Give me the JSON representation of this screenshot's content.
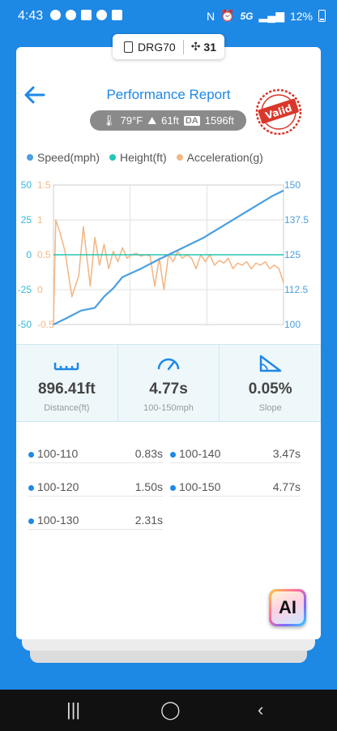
{
  "status_bar": {
    "time": "4:43",
    "network": "5G",
    "battery": "12%"
  },
  "device_pill": {
    "device": "DRG70",
    "satellites": "31"
  },
  "header": {
    "title": "Performance Report",
    "stamp_text": "Valid"
  },
  "conditions": {
    "temperature": "79°F",
    "elevation": "61ft",
    "da_label": "DA",
    "density_altitude": "1596ft"
  },
  "chart_data": {
    "type": "line",
    "legend": [
      "Speed(mph)",
      "Height(ft)",
      "Acceleration(g)"
    ],
    "colors": {
      "speed": "#4a9fe0",
      "height": "#26c6b4",
      "acceleration": "#f3b887",
      "height_axis": "#36b8d8"
    },
    "left_axis_height": {
      "ticks": [
        "50",
        "25",
        "0",
        "-25",
        "-50"
      ],
      "range": [
        -50,
        50
      ]
    },
    "left_axis_accel": {
      "ticks": [
        "1.5",
        "1",
        "0.5",
        "0",
        "-0.5"
      ],
      "range": [
        -0.5,
        1.5
      ]
    },
    "right_axis_speed": {
      "ticks": [
        "150",
        "137.5",
        "125",
        "112.5",
        "100"
      ],
      "range": [
        100,
        150
      ]
    },
    "series": [
      {
        "name": "Speed(mph)",
        "axis": "speed",
        "x": [
          0,
          0.05,
          0.12,
          0.18,
          0.22,
          0.26,
          0.3,
          0.38,
          0.45,
          0.55,
          0.65,
          0.75,
          0.85,
          0.95,
          1.0
        ],
        "y": [
          100,
          102,
          105,
          106,
          110,
          113,
          117,
          120,
          123,
          127,
          131,
          136,
          141,
          146,
          148
        ]
      },
      {
        "name": "Height(ft)",
        "axis": "height",
        "x": [
          0,
          1.0
        ],
        "y": [
          0,
          0
        ]
      },
      {
        "name": "Acceleration(g)",
        "axis": "accel",
        "x": [
          0,
          0.01,
          0.03,
          0.05,
          0.08,
          0.11,
          0.13,
          0.16,
          0.18,
          0.2,
          0.22,
          0.24,
          0.26,
          0.28,
          0.3,
          0.32,
          0.34,
          0.36,
          0.38,
          0.4,
          0.42,
          0.44,
          0.46,
          0.48,
          0.5,
          0.52,
          0.54,
          0.56,
          0.58,
          0.6,
          0.62,
          0.64,
          0.66,
          0.68,
          0.7,
          0.72,
          0.74,
          0.76,
          0.78,
          0.8,
          0.82,
          0.84,
          0.86,
          0.88,
          0.9,
          0.92,
          0.94,
          0.96,
          0.98,
          1.0
        ],
        "y": [
          -0.5,
          1.0,
          0.8,
          0.55,
          -0.1,
          0.2,
          0.9,
          0.05,
          0.75,
          0.35,
          0.65,
          0.3,
          0.55,
          0.4,
          0.6,
          0.45,
          0.5,
          0.52,
          0.48,
          0.5,
          0.48,
          0.05,
          0.45,
          0.0,
          0.5,
          0.4,
          0.55,
          0.45,
          0.5,
          0.45,
          0.3,
          0.5,
          0.4,
          0.5,
          0.35,
          0.42,
          0.38,
          0.45,
          0.3,
          0.38,
          0.35,
          0.4,
          0.3,
          0.38,
          0.35,
          0.4,
          0.3,
          0.35,
          0.3,
          0.1
        ]
      }
    ]
  },
  "stats": [
    {
      "icon": "ruler-icon",
      "value": "896.41ft",
      "label": "Distance(ft)"
    },
    {
      "icon": "speedometer-icon",
      "value": "4.77s",
      "label": "100-150mph"
    },
    {
      "icon": "slope-icon",
      "value": "0.05%",
      "label": "Slope"
    }
  ],
  "splits": [
    {
      "name": "100-110",
      "time": "0.83s"
    },
    {
      "name": "100-120",
      "time": "1.50s"
    },
    {
      "name": "100-130",
      "time": "2.31s"
    },
    {
      "name": "100-140",
      "time": "3.47s"
    },
    {
      "name": "100-150",
      "time": "4.77s"
    }
  ],
  "ai_button": {
    "label": "AI"
  }
}
